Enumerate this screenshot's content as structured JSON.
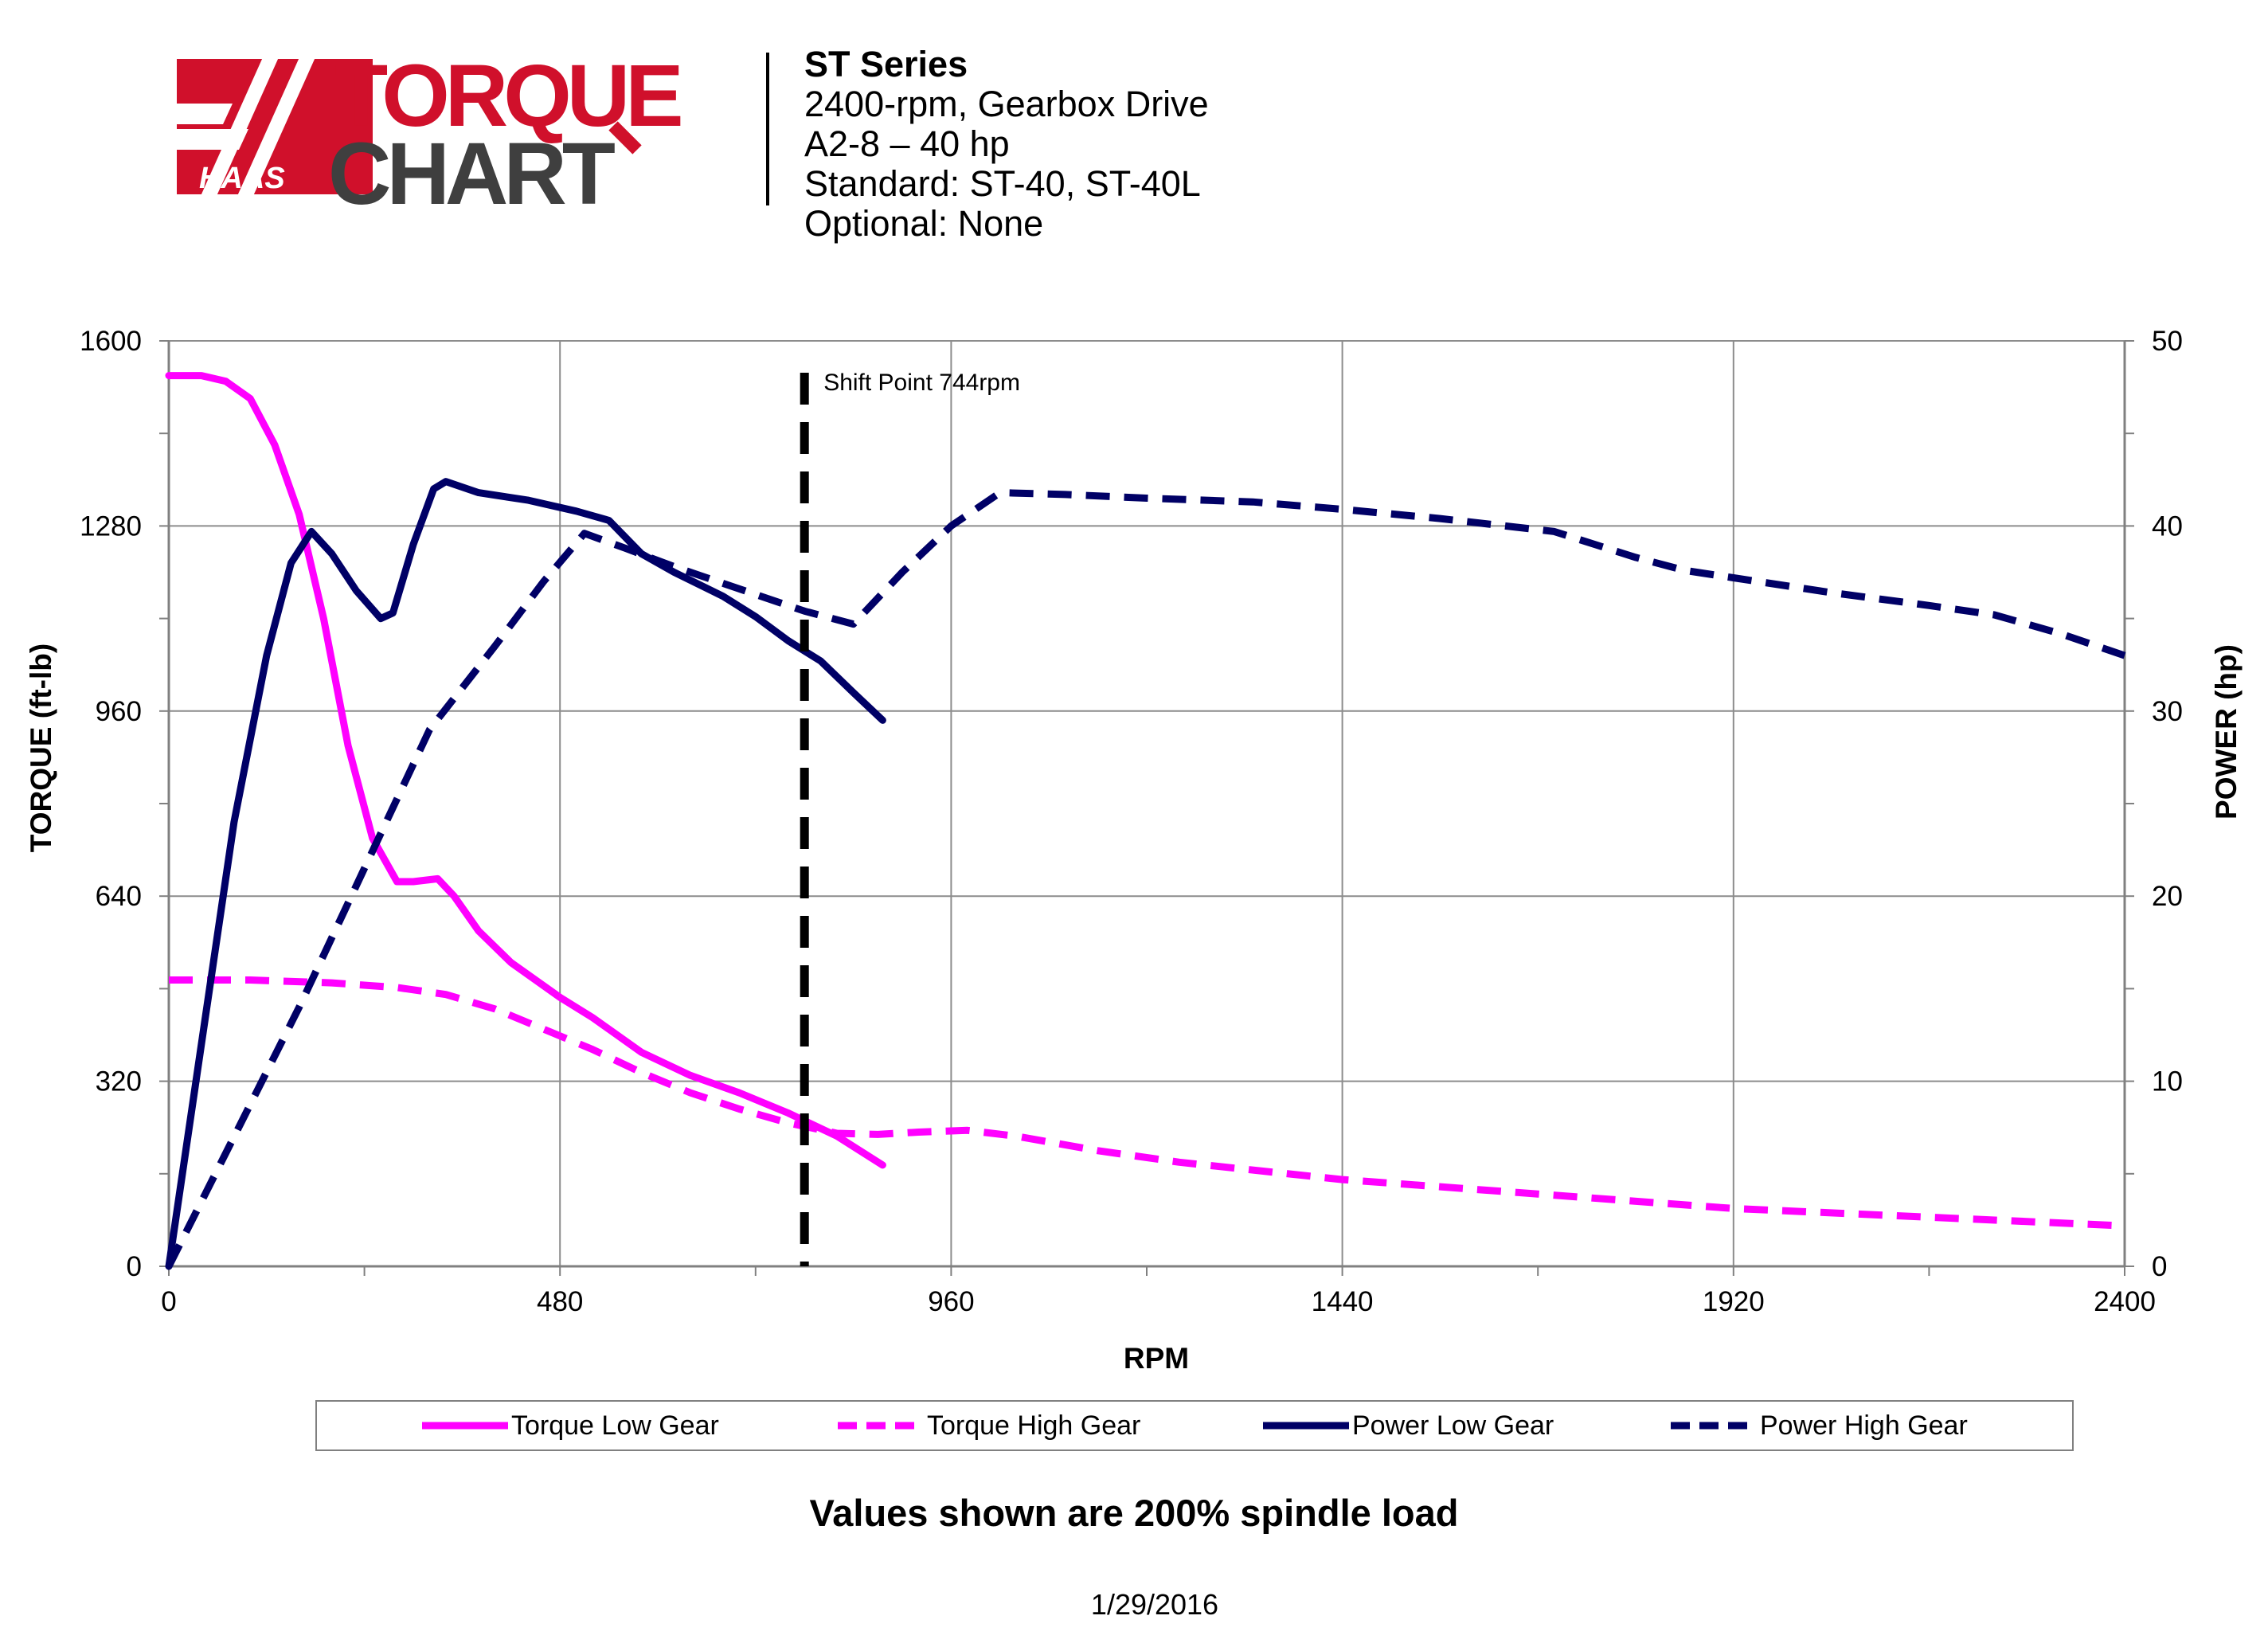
{
  "header": {
    "logo_text_top": "TORQUE",
    "logo_text_bottom": "CHART",
    "logo_brand": "HAAS",
    "title": "ST Series",
    "lines": [
      "2400-rpm, Gearbox Drive",
      "A2-8 – 40 hp",
      "Standard: ST-40, ST-40L",
      "Optional: None"
    ]
  },
  "colors": {
    "torque": "#FF00FF",
    "power": "#000066",
    "brand_red": "#D0102B",
    "logo_dark": "#3F3F3F"
  },
  "footnote": "Values shown are 200% spindle load",
  "date": "1/29/2016",
  "chart_data": {
    "type": "line",
    "xlabel": "RPM",
    "ylabel": "TORQUE (ft-lb)",
    "y2label": "POWER (hp)",
    "xlim": [
      0,
      2400
    ],
    "ylim": [
      0,
      1600
    ],
    "y2lim": [
      0,
      50
    ],
    "x_ticks": [
      "0",
      "480",
      "960",
      "1440",
      "1920",
      "2400"
    ],
    "y_ticks": [
      "0",
      "320",
      "640",
      "960",
      "1280",
      "1600"
    ],
    "y2_ticks": [
      "0",
      "10",
      "20",
      "30",
      "40",
      "50"
    ],
    "grid": true,
    "legend_position": "bottom",
    "annotation": {
      "x": 780,
      "label": "Shift Point 744rpm"
    },
    "series": [
      {
        "name": "Torque Low Gear",
        "axis": "left",
        "style": "solid",
        "color": "#FF00FF",
        "points": [
          [
            0,
            1540
          ],
          [
            40,
            1540
          ],
          [
            70,
            1530
          ],
          [
            100,
            1500
          ],
          [
            130,
            1420
          ],
          [
            160,
            1300
          ],
          [
            190,
            1120
          ],
          [
            220,
            900
          ],
          [
            250,
            740
          ],
          [
            280,
            665
          ],
          [
            300,
            665
          ],
          [
            330,
            670
          ],
          [
            350,
            640
          ],
          [
            380,
            580
          ],
          [
            420,
            525
          ],
          [
            480,
            465
          ],
          [
            520,
            430
          ],
          [
            580,
            370
          ],
          [
            640,
            330
          ],
          [
            700,
            300
          ],
          [
            760,
            265
          ],
          [
            820,
            225
          ],
          [
            876,
            175
          ]
        ]
      },
      {
        "name": "Torque High Gear",
        "axis": "left",
        "style": "dashed",
        "color": "#FF00FF",
        "points": [
          [
            0,
            495
          ],
          [
            100,
            495
          ],
          [
            200,
            490
          ],
          [
            280,
            482
          ],
          [
            340,
            470
          ],
          [
            400,
            445
          ],
          [
            460,
            410
          ],
          [
            520,
            375
          ],
          [
            580,
            335
          ],
          [
            640,
            300
          ],
          [
            700,
            272
          ],
          [
            760,
            248
          ],
          [
            820,
            230
          ],
          [
            870,
            228
          ],
          [
            920,
            232
          ],
          [
            980,
            235
          ],
          [
            1040,
            225
          ],
          [
            1140,
            200
          ],
          [
            1240,
            180
          ],
          [
            1440,
            150
          ],
          [
            1680,
            125
          ],
          [
            1920,
            100
          ],
          [
            2160,
            85
          ],
          [
            2400,
            70
          ]
        ]
      },
      {
        "name": "Power Low Gear",
        "axis": "right",
        "style": "solid",
        "color": "#000066",
        "points": [
          [
            0,
            0
          ],
          [
            40,
            12
          ],
          [
            80,
            24
          ],
          [
            120,
            33
          ],
          [
            150,
            38
          ],
          [
            175,
            39.7
          ],
          [
            200,
            38.5
          ],
          [
            230,
            36.5
          ],
          [
            260,
            35
          ],
          [
            275,
            35.3
          ],
          [
            300,
            39
          ],
          [
            325,
            42
          ],
          [
            340,
            42.4
          ],
          [
            380,
            41.8
          ],
          [
            440,
            41.4
          ],
          [
            500,
            40.8
          ],
          [
            540,
            40.3
          ],
          [
            580,
            38.5
          ],
          [
            620,
            37.5
          ],
          [
            680,
            36.2
          ],
          [
            720,
            35.1
          ],
          [
            760,
            33.8
          ],
          [
            800,
            32.7
          ],
          [
            840,
            31
          ],
          [
            876,
            29.5
          ]
        ]
      },
      {
        "name": "Power High Gear",
        "axis": "right",
        "style": "dashed",
        "color": "#000066",
        "points": [
          [
            0,
            0
          ],
          [
            80,
            7
          ],
          [
            160,
            14
          ],
          [
            240,
            21.5
          ],
          [
            320,
            29
          ],
          [
            400,
            33.5
          ],
          [
            460,
            37
          ],
          [
            510,
            39.6
          ],
          [
            560,
            38.8
          ],
          [
            620,
            37.8
          ],
          [
            700,
            36.6
          ],
          [
            780,
            35.4
          ],
          [
            840,
            34.7
          ],
          [
            900,
            37.5
          ],
          [
            960,
            40
          ],
          [
            1020,
            41.8
          ],
          [
            1100,
            41.7
          ],
          [
            1200,
            41.5
          ],
          [
            1330,
            41.3
          ],
          [
            1440,
            40.9
          ],
          [
            1560,
            40.4
          ],
          [
            1700,
            39.7
          ],
          [
            1800,
            38.3
          ],
          [
            1860,
            37.6
          ],
          [
            1920,
            37.2
          ],
          [
            2040,
            36.4
          ],
          [
            2160,
            35.7
          ],
          [
            2240,
            35.2
          ],
          [
            2320,
            34.2
          ],
          [
            2400,
            33
          ]
        ]
      }
    ]
  }
}
